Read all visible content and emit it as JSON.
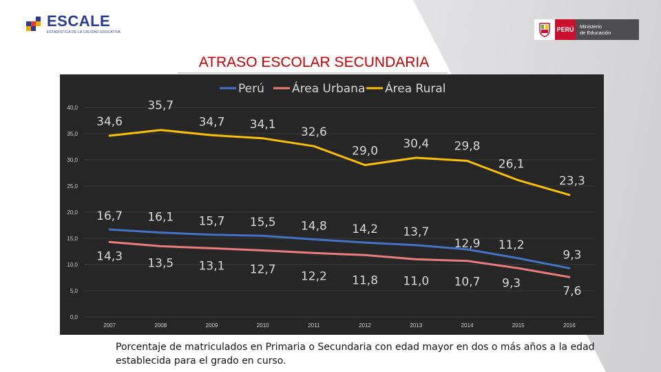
{
  "header": {
    "brand_name": "ESCALE",
    "brand_tagline": "ESTADÍSTICA DE LA CALIDAD EDUCATIVA",
    "ministry_country": "PERÚ",
    "ministry_line1": "Ministerio",
    "ministry_line2": "de Educación"
  },
  "colors": {
    "peru": "#4472c4",
    "urbana": "#ed7d7d",
    "rural": "#ffc000",
    "chart_bg": "#262626",
    "title": "#c00000"
  },
  "chart_data": {
    "type": "line",
    "title": "ATRASO ESCOLAR SECUNDARIA",
    "categories": [
      "2007",
      "2008",
      "2009",
      "2010",
      "2011",
      "2012",
      "2013",
      "2014",
      "2015",
      "2016"
    ],
    "ylim": [
      0,
      40
    ],
    "y_ticks": [
      "0,0",
      "5,0",
      "10,0",
      "15,0",
      "20,0",
      "25,0",
      "30,0",
      "35,0",
      "40,0"
    ],
    "grid": true,
    "legend_position": "top",
    "series": [
      {
        "name": "Perú",
        "color": "#4472c4",
        "values": [
          16.7,
          16.1,
          15.7,
          15.5,
          14.8,
          14.2,
          13.7,
          12.9,
          11.2,
          9.3
        ],
        "labels": [
          "16,7",
          "16,1",
          "15,7",
          "15,5",
          "14,8",
          "14,2",
          "13,7",
          "12,9",
          "11,2",
          "9,3"
        ]
      },
      {
        "name": "Área Urbana",
        "color": "#ed7d7d",
        "values": [
          14.3,
          13.5,
          13.1,
          12.7,
          12.2,
          11.8,
          11.0,
          10.7,
          9.3,
          7.6
        ],
        "labels": [
          "14,3",
          "13,5",
          "13,1",
          "12,7",
          "12,2",
          "11,8",
          "11,0",
          "10,7",
          "9,3",
          "7,6"
        ]
      },
      {
        "name": "Área Rural",
        "color": "#ffc000",
        "values": [
          34.6,
          35.7,
          34.7,
          34.1,
          32.6,
          29.0,
          30.4,
          29.8,
          26.1,
          23.3
        ],
        "labels": [
          "34,6",
          "35,7",
          "34,7",
          "34,1",
          "32,6",
          "29,0",
          "30,4",
          "29,8",
          "26,1",
          "23,3"
        ]
      }
    ]
  },
  "caption": "Porcentaje de matriculados en Primaria o Secundaria con edad mayor en dos o más años a la edad establecida para el grado en curso."
}
